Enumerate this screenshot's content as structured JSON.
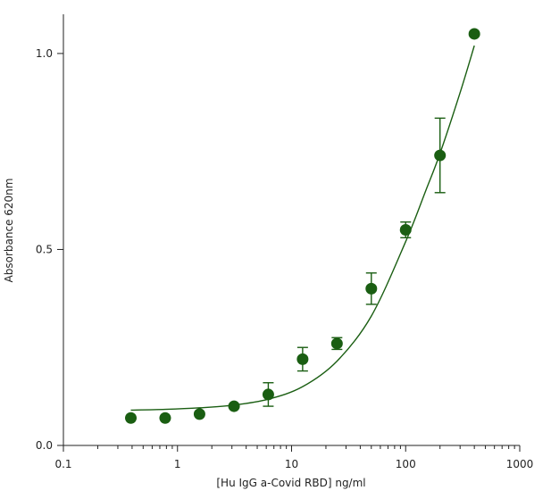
{
  "chart_data": {
    "type": "scatter",
    "title": "",
    "xlabel": "[Hu IgG a-Covid RBD] ng/ml",
    "ylabel": "Absorbance 620nm",
    "xscale": "log",
    "xlim": [
      0.1,
      1000
    ],
    "ylim": [
      0,
      1.1
    ],
    "xticks": [
      0.1,
      1,
      10,
      100,
      1000
    ],
    "xtick_labels": [
      "0.1",
      "1",
      "10",
      "100",
      "1000"
    ],
    "yticks": [
      0.0,
      0.5,
      1.0
    ],
    "ytick_labels": [
      "0.0",
      "0.5",
      "1.0"
    ],
    "grid": false,
    "legend": "none",
    "color": "#1a5e12",
    "series": [
      {
        "x": [
          0.39,
          0.78,
          1.56,
          3.13,
          6.25,
          12.5,
          25,
          50,
          100,
          200,
          400
        ],
        "y": [
          0.07,
          0.07,
          0.08,
          0.1,
          0.13,
          0.22,
          0.26,
          0.4,
          0.55,
          0.74,
          1.05
        ],
        "err": [
          0,
          0,
          0,
          0,
          0.03,
          0.03,
          0.015,
          0.04,
          0.02,
          0.095,
          0
        ]
      }
    ],
    "fit_curve": {
      "x": [
        0.39,
        0.78,
        1.56,
        3.13,
        6.25,
        12.5,
        25,
        50,
        100,
        150,
        200,
        300,
        400
      ],
      "y": [
        0.09,
        0.092,
        0.096,
        0.103,
        0.118,
        0.15,
        0.215,
        0.33,
        0.52,
        0.65,
        0.745,
        0.9,
        1.02
      ]
    }
  }
}
